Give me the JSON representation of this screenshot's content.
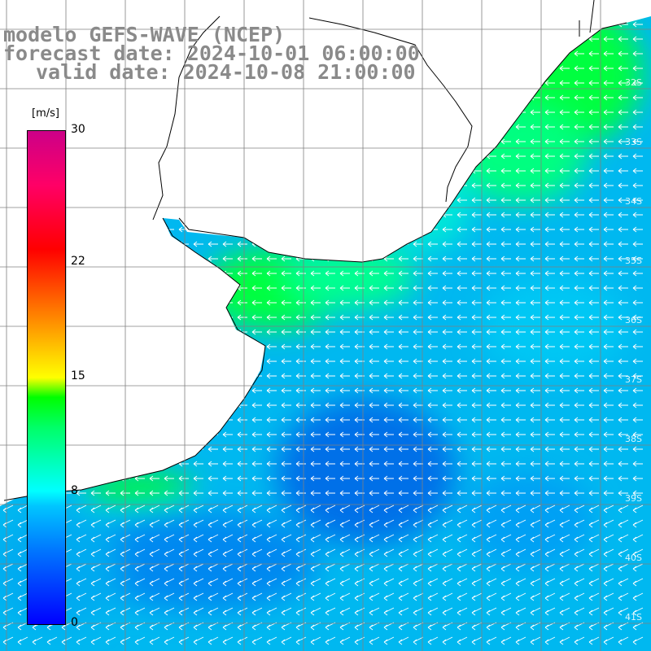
{
  "title": {
    "model": "modelo GEFS-WAVE (NCEP)",
    "forecast": "forecast date: 2024-10-01 06:00:00",
    "valid": "valid date: 2024-10-08 21:00:00"
  },
  "colorbar": {
    "unit": "[m/s]",
    "ticks": [
      "30",
      "22",
      "15",
      "8",
      "0"
    ],
    "tick_values": [
      30,
      22,
      15,
      8,
      0
    ],
    "min": 0,
    "max": 30
  },
  "latitude_labels": [
    "32S",
    "33S",
    "34S",
    "35S",
    "36S",
    "37S",
    "38S",
    "39S",
    "40S",
    "41S"
  ],
  "colors": {
    "land": "#ffffff",
    "coast": "#000000",
    "grid": "#808080",
    "arrow": "#ffffff",
    "title_text": "#8a8a8a"
  },
  "wind_direction": "arrows pointing west / south-west across the field"
}
